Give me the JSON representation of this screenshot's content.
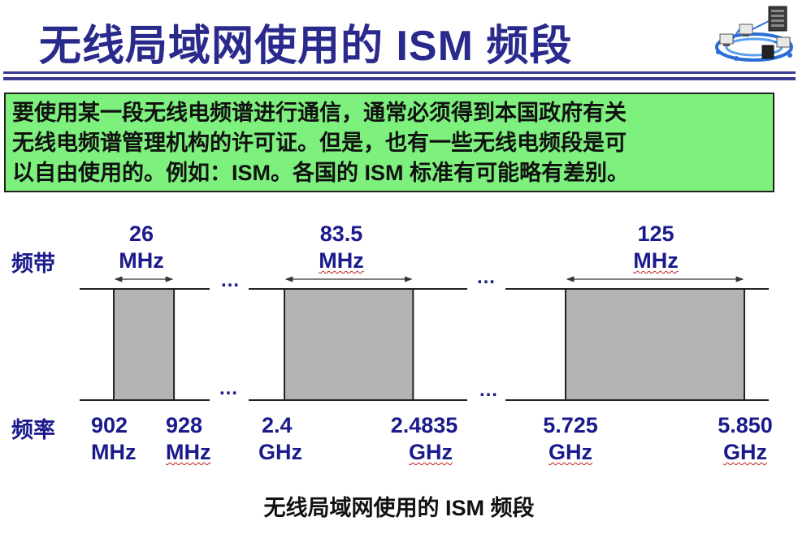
{
  "title": "无线局域网使用的 ISM 频段",
  "intro": {
    "lines": [
      "要使用某一段无线电频谱进行通信，通常必须得到本国政府有关",
      "无线电频谱管理机构的许可证。但是，也有一些无线电频段是可",
      "以自由使用的。例如：ISM。各国的 ISM 标准有可能略有差别。"
    ],
    "bg_color": "#7df07d"
  },
  "labels": {
    "band": "频带",
    "frequency": "频率"
  },
  "ellipsis": "…",
  "bands": [
    {
      "width_value": "26",
      "width_unit": "MHz",
      "start_value": "902",
      "start_unit": "MHz",
      "end_value": "928",
      "end_unit": "MHz",
      "width_mhz": 26
    },
    {
      "width_value": "83.5",
      "width_unit": "MHz",
      "start_value": "2.4",
      "start_unit": "GHz",
      "end_value": "2.4835",
      "end_unit": "GHz",
      "width_mhz": 83.5
    },
    {
      "width_value": "125",
      "width_unit": "MHz",
      "start_value": "5.725",
      "start_unit": "GHz",
      "end_value": "5.850",
      "end_unit": "GHz",
      "width_mhz": 125
    }
  ],
  "caption": "无线局域网使用的 ISM 频段",
  "colors": {
    "title": "#2a2a8c",
    "label": "#1a1a8c",
    "block_fill": "#b3b3b3",
    "accent": "#2a2a8c"
  },
  "logo_icon": "network-devices-icon"
}
